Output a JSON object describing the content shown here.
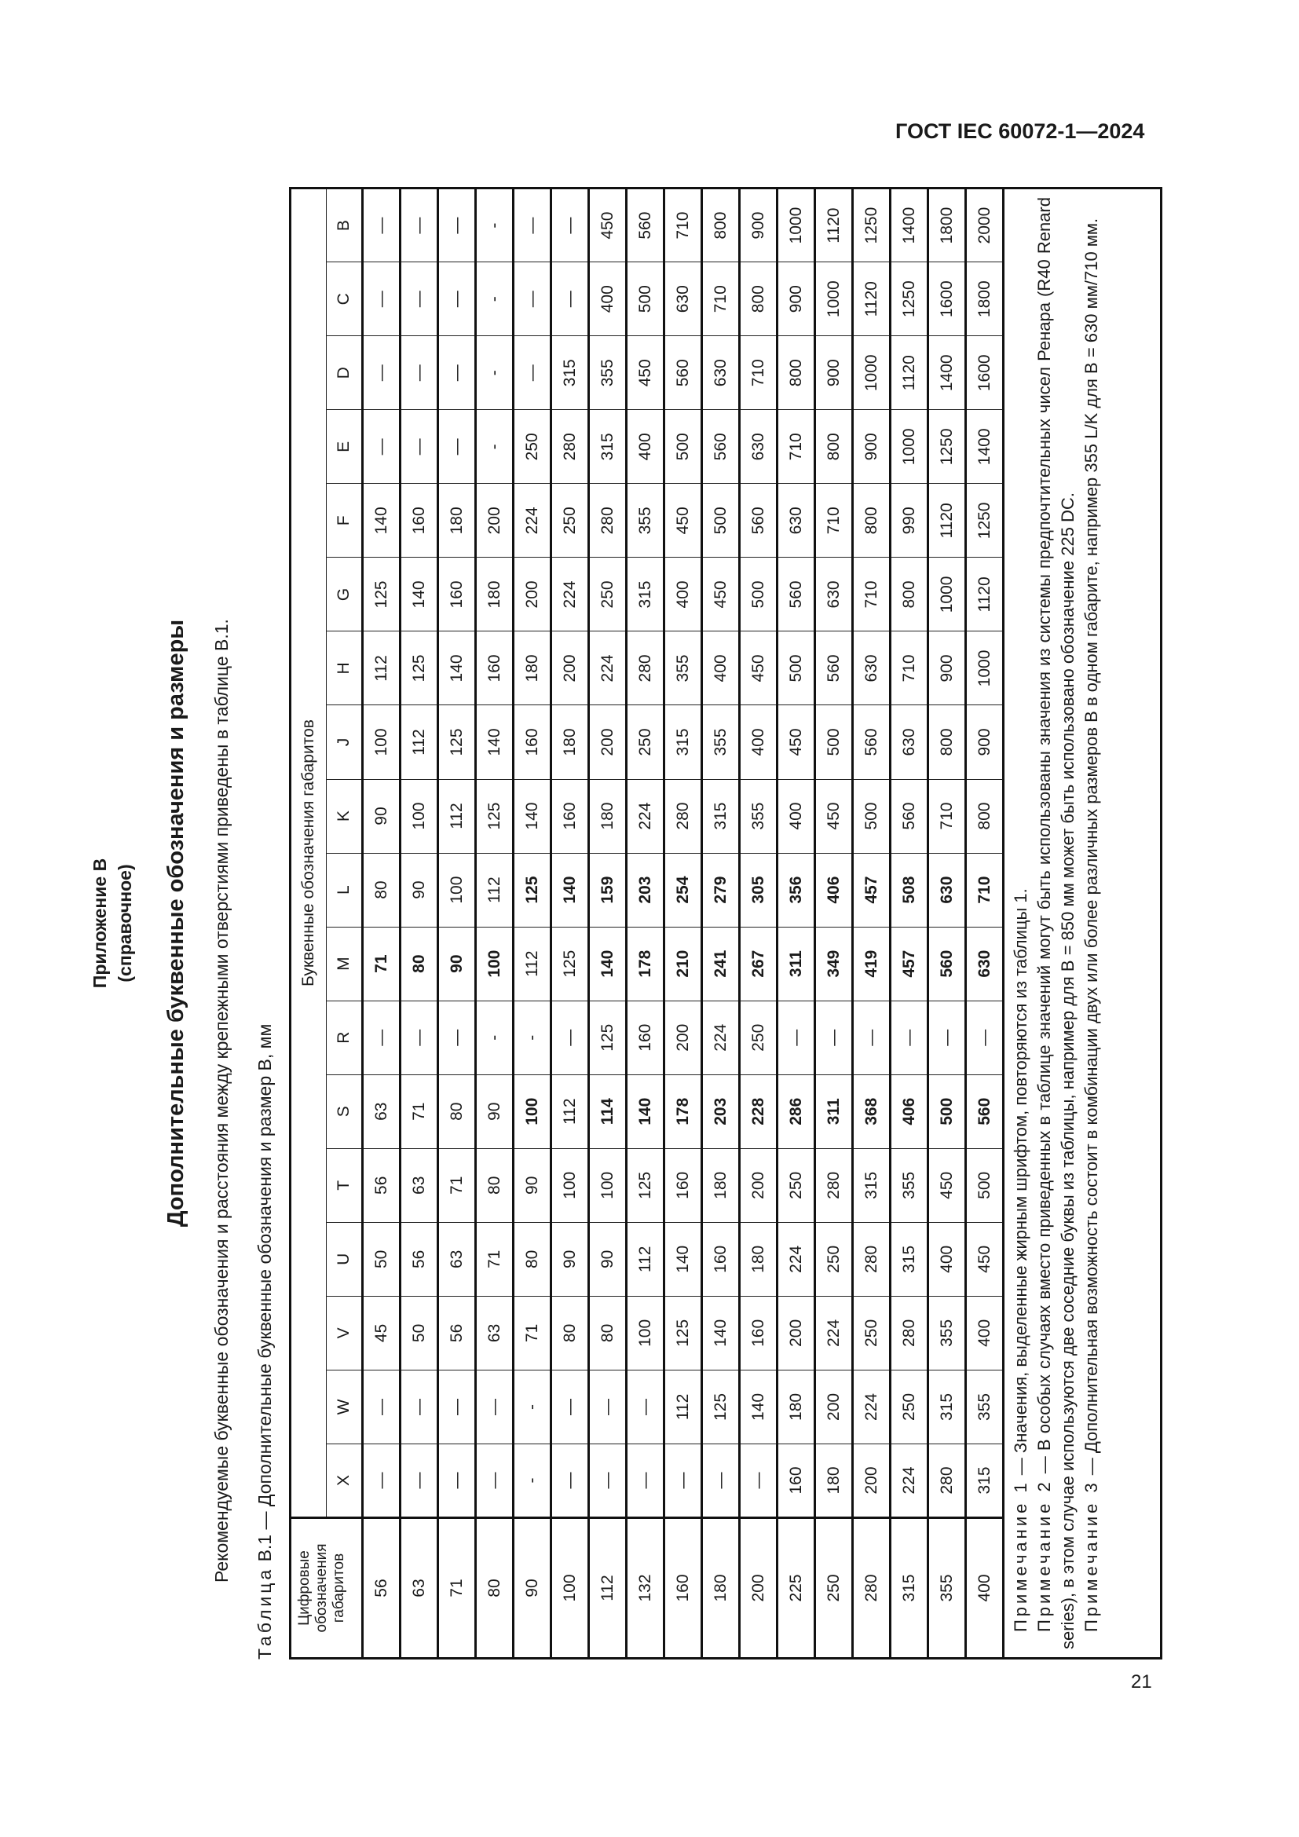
{
  "header": {
    "doc_code": "ГОСТ IEC 60072-1—2024"
  },
  "footer": {
    "page_number": "21"
  },
  "appendix": {
    "title": "Приложение В",
    "subtitle": "(справочное)"
  },
  "section_title": "Дополнительные буквенные обозначения и размеры",
  "intro": "Рекомендуемые буквенные обозначения и расстояния между крепежными отверстиями приведены в таблице В.1.",
  "caption": {
    "label": "Таблица",
    "text": "В.1 — Дополнительные буквенные обозначения и размер В, мм"
  },
  "table": {
    "row_header": "Цифровые обозначения габаритов",
    "group_header": "Буквенные обозначения габаритов",
    "columns": [
      "X",
      "W",
      "V",
      "U",
      "T",
      "S",
      "R",
      "M",
      "L",
      "K",
      "J",
      "H",
      "G",
      "F",
      "E",
      "D",
      "C",
      "B"
    ],
    "rows": [
      {
        "frame": "56",
        "cells": [
          "—",
          "—",
          "45",
          "50",
          "56",
          "63",
          "—",
          "71",
          "80",
          "90",
          "100",
          "112",
          "125",
          "140",
          "—",
          "—",
          "—",
          "—"
        ],
        "bold": [
          "M"
        ]
      },
      {
        "frame": "63",
        "cells": [
          "—",
          "—",
          "50",
          "56",
          "63",
          "71",
          "—",
          "80",
          "90",
          "100",
          "112",
          "125",
          "140",
          "160",
          "—",
          "—",
          "—",
          "—"
        ],
        "bold": [
          "M"
        ]
      },
      {
        "frame": "71",
        "cells": [
          "—",
          "—",
          "56",
          "63",
          "71",
          "80",
          "—",
          "90",
          "100",
          "112",
          "125",
          "140",
          "160",
          "180",
          "—",
          "—",
          "—",
          "—"
        ],
        "bold": [
          "M"
        ]
      },
      {
        "frame": "80",
        "cells": [
          "—",
          "—",
          "63",
          "71",
          "80",
          "90",
          "-",
          "100",
          "112",
          "125",
          "140",
          "160",
          "180",
          "200",
          "-",
          "-",
          "-",
          "-"
        ],
        "bold": [
          "M"
        ]
      },
      {
        "frame": "90",
        "cells": [
          "-",
          "-",
          "71",
          "80",
          "90",
          "100",
          "-",
          "112",
          "125",
          "140",
          "160",
          "180",
          "200",
          "224",
          "250",
          "—",
          "—",
          "—"
        ],
        "bold": [
          "S",
          "L"
        ]
      },
      {
        "frame": "100",
        "cells": [
          "—",
          "—",
          "80",
          "90",
          "100",
          "112",
          "—",
          "125",
          "140",
          "160",
          "180",
          "200",
          "224",
          "250",
          "280",
          "315",
          "—",
          "—"
        ],
        "bold": [
          "L"
        ]
      },
      {
        "frame": "112",
        "cells": [
          "—",
          "—",
          "80",
          "90",
          "100",
          "114",
          "125",
          "140",
          "159",
          "180",
          "200",
          "224",
          "250",
          "280",
          "315",
          "355",
          "400",
          "450"
        ],
        "bold": [
          "S",
          "M",
          "L"
        ]
      },
      {
        "frame": "132",
        "cells": [
          "—",
          "—",
          "100",
          "112",
          "125",
          "140",
          "160",
          "178",
          "203",
          "224",
          "250",
          "280",
          "315",
          "355",
          "400",
          "450",
          "500",
          "560"
        ],
        "bold": [
          "S",
          "M",
          "L"
        ]
      },
      {
        "frame": "160",
        "cells": [
          "—",
          "112",
          "125",
          "140",
          "160",
          "178",
          "200",
          "210",
          "254",
          "280",
          "315",
          "355",
          "400",
          "450",
          "500",
          "560",
          "630",
          "710"
        ],
        "bold": [
          "S",
          "M",
          "L"
        ]
      },
      {
        "frame": "180",
        "cells": [
          "—",
          "125",
          "140",
          "160",
          "180",
          "203",
          "224",
          "241",
          "279",
          "315",
          "355",
          "400",
          "450",
          "500",
          "560",
          "630",
          "710",
          "800"
        ],
        "bold": [
          "S",
          "M",
          "L"
        ]
      },
      {
        "frame": "200",
        "cells": [
          "—",
          "140",
          "160",
          "180",
          "200",
          "228",
          "250",
          "267",
          "305",
          "355",
          "400",
          "450",
          "500",
          "560",
          "630",
          "710",
          "800",
          "900"
        ],
        "bold": [
          "S",
          "M",
          "L"
        ]
      },
      {
        "frame": "225",
        "cells": [
          "160",
          "180",
          "200",
          "224",
          "250",
          "286",
          "—",
          "311",
          "356",
          "400",
          "450",
          "500",
          "560",
          "630",
          "710",
          "800",
          "900",
          "1000"
        ],
        "bold": [
          "S",
          "M",
          "L"
        ]
      },
      {
        "frame": "250",
        "cells": [
          "180",
          "200",
          "224",
          "250",
          "280",
          "311",
          "—",
          "349",
          "406",
          "450",
          "500",
          "560",
          "630",
          "710",
          "800",
          "900",
          "1000",
          "1120"
        ],
        "bold": [
          "S",
          "M",
          "L"
        ]
      },
      {
        "frame": "280",
        "cells": [
          "200",
          "224",
          "250",
          "280",
          "315",
          "368",
          "—",
          "419",
          "457",
          "500",
          "560",
          "630",
          "710",
          "800",
          "900",
          "1000",
          "1120",
          "1250"
        ],
        "bold": [
          "S",
          "M",
          "L"
        ]
      },
      {
        "frame": "315",
        "cells": [
          "224",
          "250",
          "280",
          "315",
          "355",
          "406",
          "—",
          "457",
          "508",
          "560",
          "630",
          "710",
          "800",
          "990",
          "1000",
          "1120",
          "1250",
          "1400"
        ],
        "bold": [
          "S",
          "M",
          "L"
        ]
      },
      {
        "frame": "355",
        "cells": [
          "280",
          "315",
          "355",
          "400",
          "450",
          "500",
          "—",
          "560",
          "630",
          "710",
          "800",
          "900",
          "1000",
          "1120",
          "1250",
          "1400",
          "1600",
          "1800"
        ],
        "bold": [
          "S",
          "M",
          "L"
        ]
      },
      {
        "frame": "400",
        "cells": [
          "315",
          "355",
          "400",
          "450",
          "500",
          "560",
          "—",
          "630",
          "710",
          "800",
          "900",
          "1000",
          "1120",
          "1250",
          "1400",
          "1600",
          "1800",
          "2000"
        ],
        "bold": [
          "S",
          "M",
          "L"
        ]
      }
    ]
  },
  "notes": [
    {
      "label": "Примечание 1",
      "text": " — Значения, выделенные жирным шрифтом, повторяются из таблицы 1."
    },
    {
      "label": "Примечание 2",
      "text": " — В особых случаях вместо приведенных в таблице значений могут быть использованы значения из системы предпочтительных чисел Ренара (R40 Renard series), в этом случае используются две соседние буквы из таблицы, например для B = 850 мм может быть использовано обозначение 225 DC."
    },
    {
      "label": "Примечание 3",
      "text": " — Дополнительная возможность состоит в комбинации двух или более различных размеров B в одном габарите, например 355 L/K для B = 630 мм/710 мм."
    }
  ]
}
